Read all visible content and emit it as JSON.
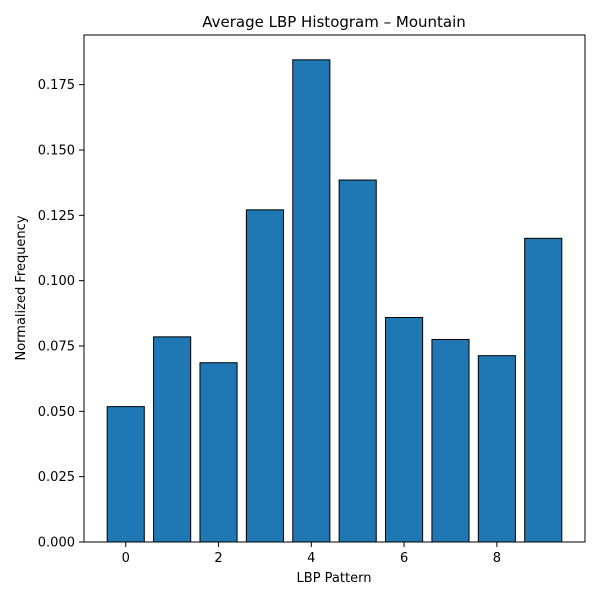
{
  "chart_data": {
    "type": "bar",
    "title": "Average LBP Histogram – Mountain",
    "xlabel": "LBP Pattern",
    "ylabel": "Normalized Frequency",
    "x": [
      0,
      1,
      2,
      3,
      4,
      5,
      6,
      7,
      8,
      9
    ],
    "values": [
      0.0518,
      0.0785,
      0.0686,
      0.1271,
      0.1845,
      0.1385,
      0.0859,
      0.0775,
      0.0713,
      0.1162
    ],
    "xlim": [
      -0.9,
      9.9
    ],
    "ylim": [
      0,
      0.194
    ],
    "xticks": [
      0,
      2,
      4,
      6,
      8
    ],
    "xtick_labels": [
      "0",
      "2",
      "4",
      "6",
      "8"
    ],
    "yticks": [
      0,
      0.025,
      0.05,
      0.075,
      0.1,
      0.125,
      0.15,
      0.175
    ],
    "ytick_labels": [
      "0.000",
      "0.025",
      "0.050",
      "0.075",
      "0.100",
      "0.125",
      "0.150",
      "0.175"
    ],
    "grid": false,
    "bar_color": "#1f77b4",
    "bar_edge_color": "#000000"
  }
}
